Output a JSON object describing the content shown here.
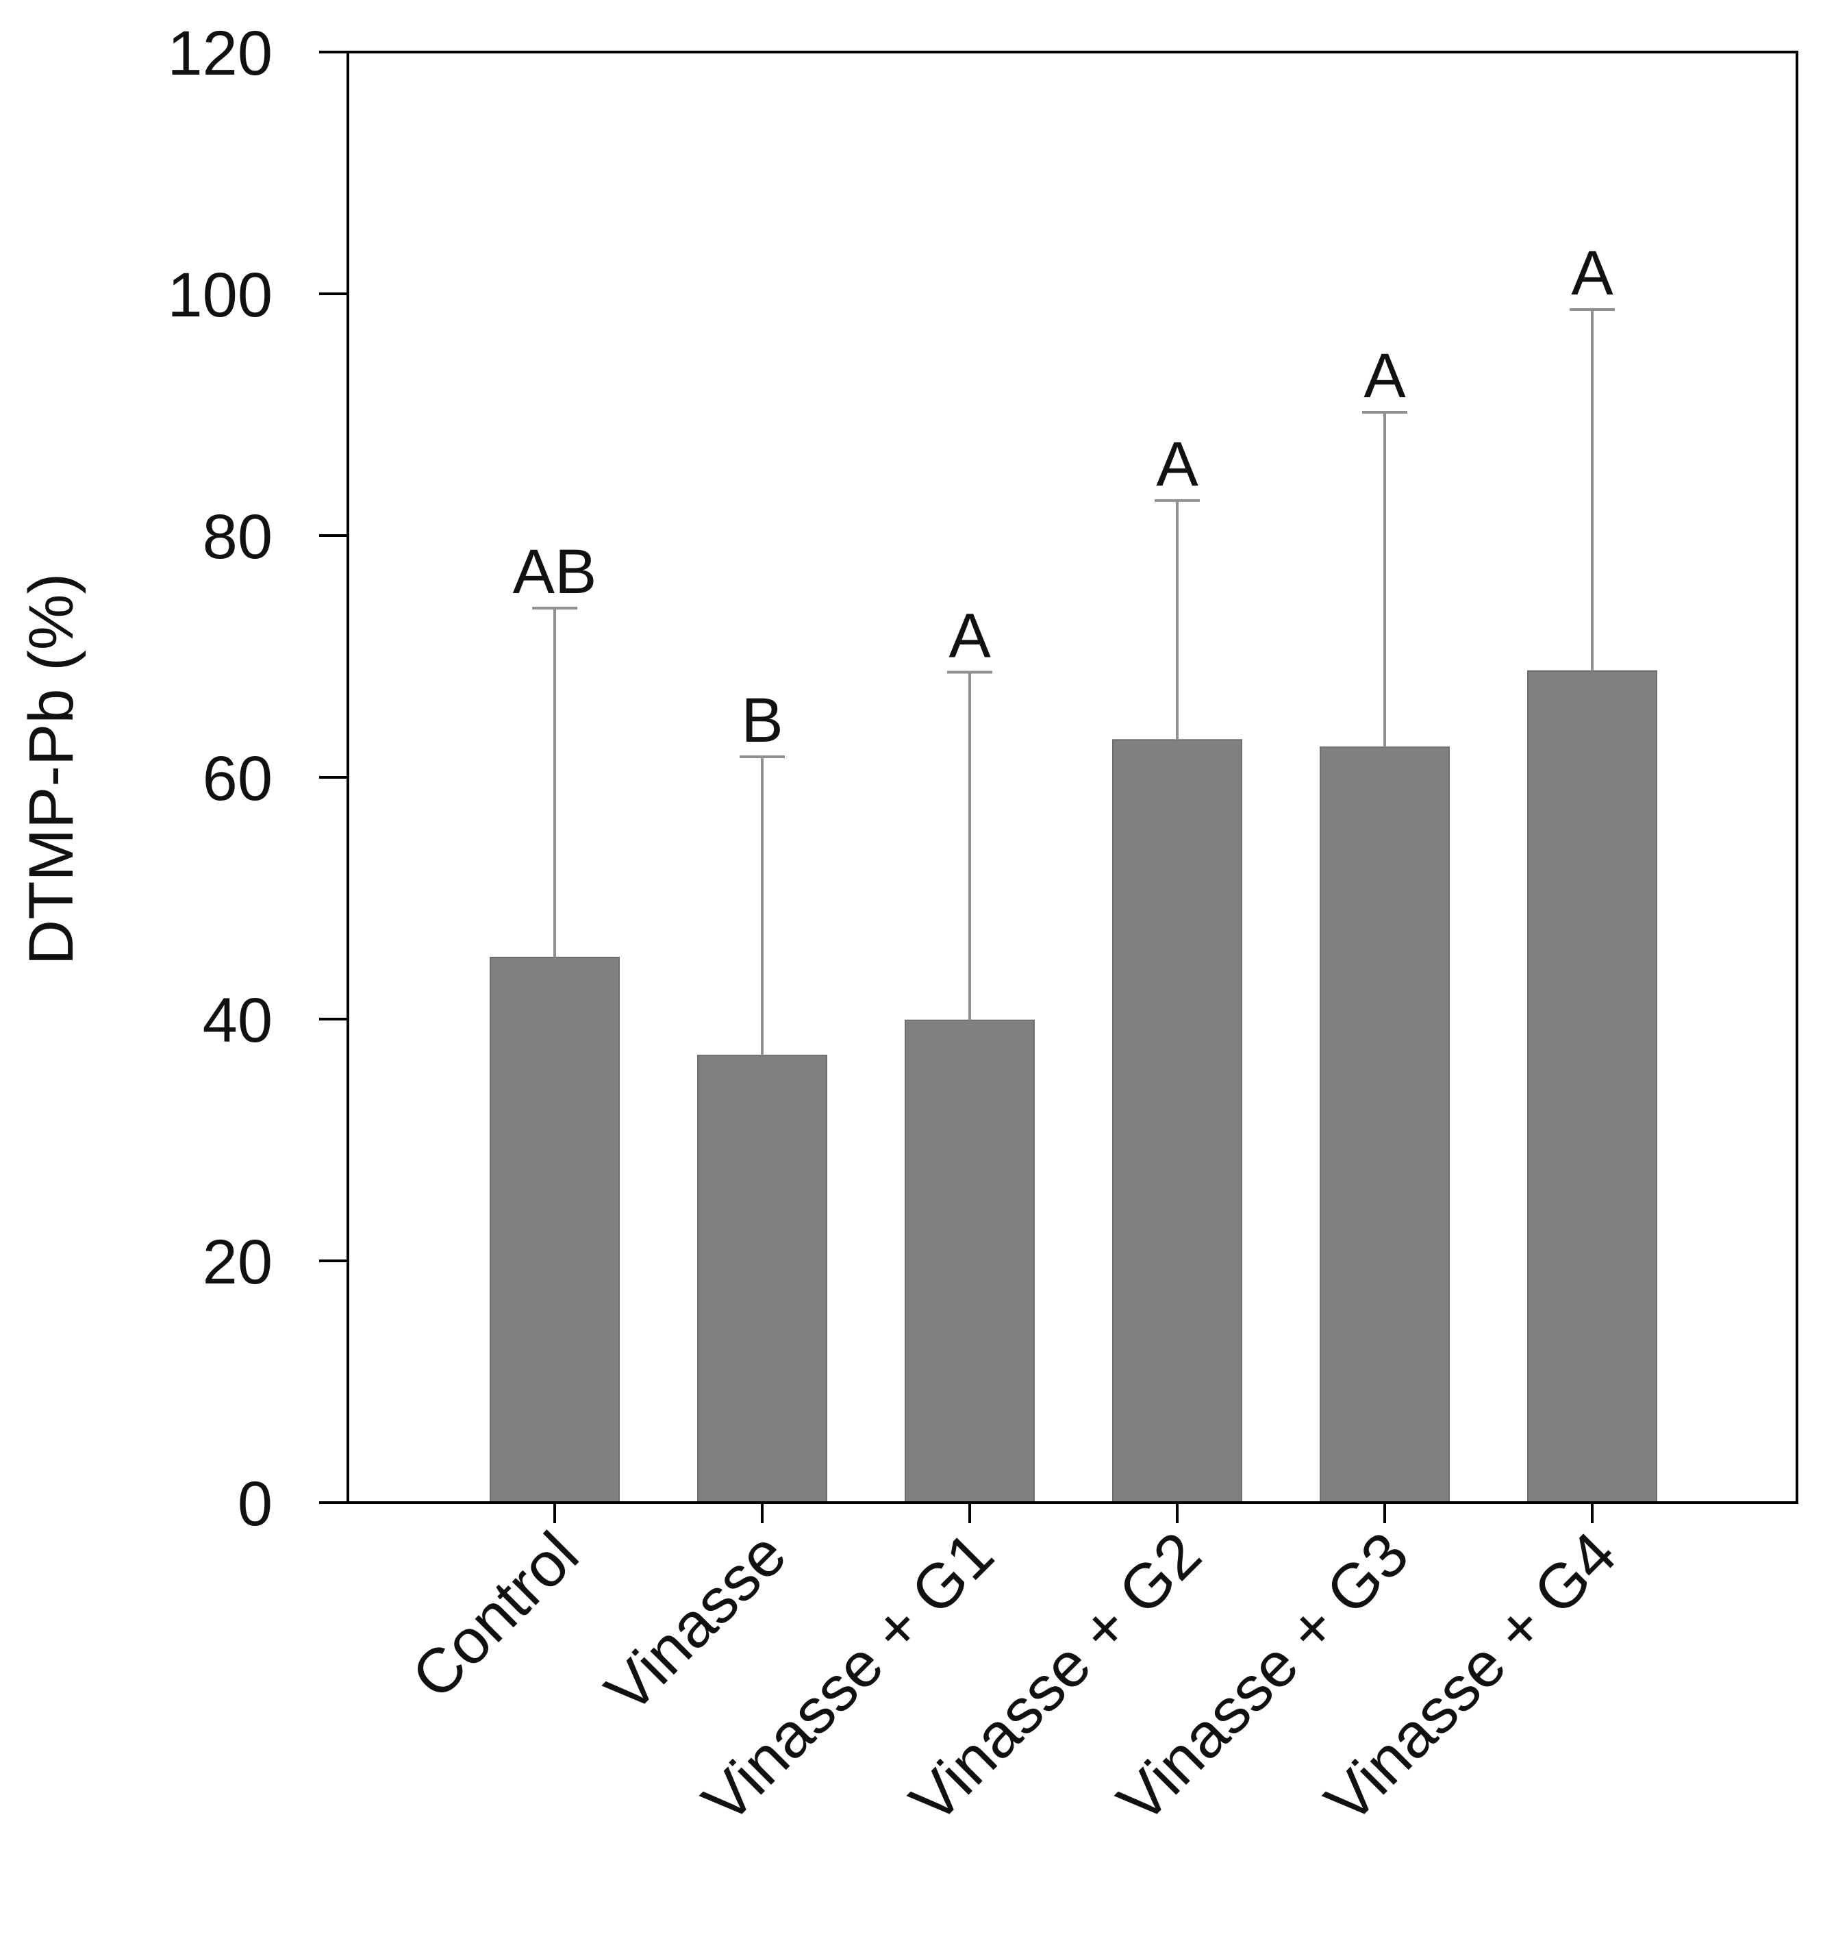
{
  "chart_data": {
    "type": "bar",
    "title": "",
    "xlabel": "",
    "ylabel": "DTMP-Pb (%)",
    "ylim": [
      0,
      120
    ],
    "yticks": [
      0,
      20,
      40,
      60,
      80,
      100,
      120
    ],
    "ytick_labels": [
      "0",
      "20",
      "40",
      "60",
      "80",
      "100",
      "120"
    ],
    "grid": false,
    "categories": [
      "Control",
      "Vinasse",
      "Vinasse + G1",
      "Vinasse + G2",
      "Vinasse + G3",
      "Vinasse + G4"
    ],
    "values": [
      45.1,
      37.0,
      39.9,
      63.1,
      62.5,
      68.8
    ],
    "error_upper": [
      74.0,
      61.7,
      68.7,
      82.9,
      90.2,
      98.7
    ],
    "significance_letters": [
      "AB",
      "B",
      "A",
      "A",
      "A",
      "A"
    ],
    "bar_color": "#808080",
    "error_bar_color": "#909090",
    "axis_color": "#000000"
  }
}
